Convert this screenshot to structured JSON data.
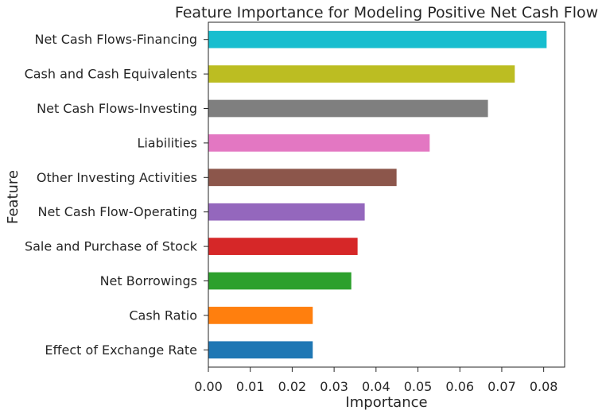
{
  "chart_data": {
    "type": "bar",
    "orientation": "horizontal",
    "title": "Feature Importance for Modeling Positive Net Cash Flow",
    "xlabel": "Importance",
    "ylabel": "Feature",
    "xlim": [
      0,
      0.085
    ],
    "xticks": [
      "0.00",
      "0.01",
      "0.02",
      "0.03",
      "0.04",
      "0.05",
      "0.06",
      "0.07",
      "0.08"
    ],
    "grid": false,
    "categories": [
      "Effect of Exchange Rate",
      "Cash Ratio",
      "Net Borrowings",
      "Sale and Purchase of Stock",
      "Net Cash Flow-Operating",
      "Other Investing Activities",
      "Liabilities",
      "Net Cash Flows-Investing",
      "Cash and Cash Equivalents",
      "Net Cash Flows-Financing"
    ],
    "values": [
      0.0249,
      0.0249,
      0.0341,
      0.0356,
      0.0373,
      0.0449,
      0.0528,
      0.0667,
      0.0731,
      0.0807
    ],
    "colors": [
      "#1f77b4",
      "#ff7f0e",
      "#2ca02c",
      "#d62728",
      "#9467bd",
      "#8c564b",
      "#e377c2",
      "#7f7f7f",
      "#bcbd22",
      "#17becf"
    ]
  }
}
